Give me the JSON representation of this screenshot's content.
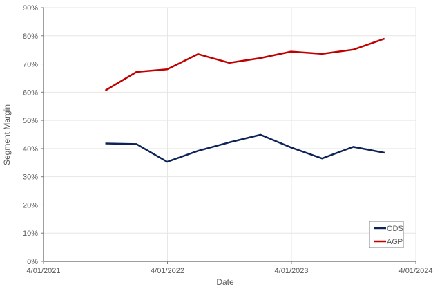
{
  "chart_data": {
    "type": "line",
    "title": "",
    "xlabel": "Date",
    "ylabel": "Segment Margin",
    "x": [
      "9/30/2021",
      "12/31/2021",
      "3/31/2022",
      "6/30/2022",
      "9/30/2022",
      "12/31/2022",
      "3/31/2023",
      "6/30/2023",
      "9/30/2023",
      "12/31/2023"
    ],
    "series": [
      {
        "name": "ODS",
        "color": "#0E2356",
        "values": [
          0.418,
          0.416,
          0.353,
          0.392,
          0.422,
          0.449,
          0.404,
          0.365,
          0.406,
          0.385
        ]
      },
      {
        "name": "AGP",
        "color": "#C00000",
        "values": [
          0.606,
          0.672,
          0.681,
          0.735,
          0.704,
          0.721,
          0.744,
          0.736,
          0.751,
          0.79
        ]
      }
    ],
    "ylim": [
      0,
      0.9
    ],
    "yticks": [
      "0%",
      "10%",
      "20%",
      "30%",
      "40%",
      "50%",
      "60%",
      "70%",
      "80%",
      "90%"
    ],
    "xlim": [
      "4/01/2021",
      "4/01/2024"
    ],
    "xticks": [
      "4/01/2021",
      "4/01/2022",
      "4/01/2023",
      "4/01/2024"
    ],
    "grid": true,
    "legend_position": "bottom-right inside"
  },
  "axes": {
    "xlabel": "Date",
    "ylabel": "Segment Margin"
  },
  "legend": {
    "items": [
      {
        "label": "ODS",
        "color": "#0E2356"
      },
      {
        "label": "AGP",
        "color": "#C00000"
      }
    ]
  }
}
